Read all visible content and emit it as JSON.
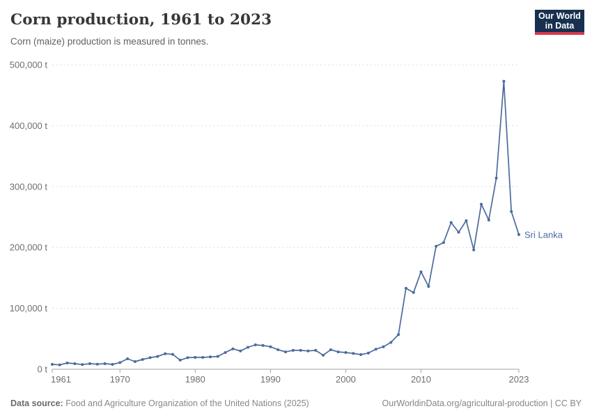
{
  "header": {
    "title": "Corn production, 1961 to 2023",
    "subtitle": "Corn (maize) production is measured in tonnes.",
    "logo": {
      "line1": "Our World",
      "line2": "in Data",
      "bg_color": "#18304f",
      "accent_color": "#d93a4a"
    }
  },
  "chart_data": {
    "type": "line",
    "title": "Corn production, 1961 to 2023",
    "xlabel": "",
    "ylabel": "",
    "xlim": [
      1961,
      2023
    ],
    "ylim": [
      0,
      500000
    ],
    "grid": "horizontal-dashed",
    "legend_position": "end-of-line-label",
    "x_ticks": [
      1961,
      1970,
      1980,
      1990,
      2000,
      2010,
      2023
    ],
    "y_ticks": [
      {
        "value": 0,
        "label": "0 t"
      },
      {
        "value": 100000,
        "label": "100,000 t"
      },
      {
        "value": 200000,
        "label": "200,000 t"
      },
      {
        "value": 300000,
        "label": "300,000 t"
      },
      {
        "value": 400000,
        "label": "400,000 t"
      },
      {
        "value": 500000,
        "label": "500,000 t"
      }
    ],
    "series": [
      {
        "name": "Sri Lanka",
        "color": "#4c6a9c",
        "x": [
          1961,
          1962,
          1963,
          1964,
          1965,
          1966,
          1967,
          1968,
          1969,
          1970,
          1971,
          1972,
          1973,
          1974,
          1975,
          1976,
          1977,
          1978,
          1979,
          1980,
          1981,
          1982,
          1983,
          1984,
          1985,
          1986,
          1987,
          1988,
          1989,
          1990,
          1991,
          1992,
          1993,
          1994,
          1995,
          1996,
          1997,
          1998,
          1999,
          2000,
          2001,
          2002,
          2003,
          2004,
          2005,
          2006,
          2007,
          2008,
          2009,
          2010,
          2011,
          2012,
          2013,
          2014,
          2015,
          2016,
          2017,
          2018,
          2019,
          2020,
          2021,
          2022,
          2023
        ],
        "values": [
          8000,
          7200,
          10300,
          9200,
          7700,
          9200,
          8400,
          9200,
          8000,
          11000,
          17200,
          12600,
          16000,
          19000,
          21000,
          25500,
          24500,
          15000,
          19000,
          19400,
          19400,
          20200,
          21000,
          27500,
          33500,
          30000,
          36000,
          40000,
          39000,
          37000,
          32000,
          28500,
          31000,
          31000,
          30000,
          31000,
          23000,
          32000,
          28500,
          27500,
          26000,
          24000,
          26500,
          33000,
          37000,
          44000,
          57000,
          133000,
          126000,
          160000,
          136000,
          202000,
          208000,
          241000,
          225000,
          244000,
          196000,
          271000,
          245000,
          314000,
          473000,
          259000,
          221000
        ]
      }
    ]
  },
  "footer": {
    "source_label": "Data source:",
    "source_text": " Food and Agriculture Organization of the United Nations (2025)",
    "credit": "OurWorldinData.org/agricultural-production | CC BY"
  }
}
